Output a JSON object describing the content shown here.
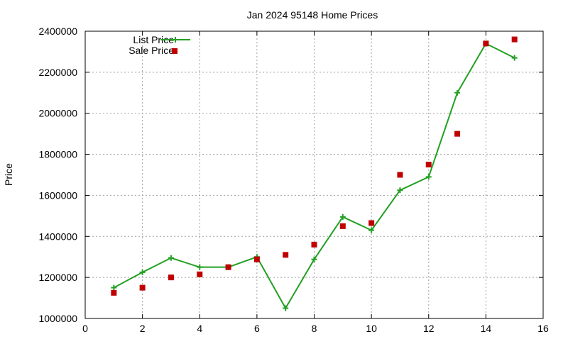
{
  "chart_data": {
    "type": "line",
    "title": "Jan 2024 95148 Home Prices",
    "xlabel": "",
    "ylabel": "Price",
    "xlim": [
      0,
      16
    ],
    "ylim": [
      1000000,
      2400000
    ],
    "x_ticks": [
      "0",
      "2",
      "4",
      "6",
      "8",
      "10",
      "12",
      "14",
      "16"
    ],
    "y_ticks": [
      "1000000",
      "1200000",
      "1400000",
      "1600000",
      "1800000",
      "2000000",
      "2200000",
      "2400000"
    ],
    "grid": true,
    "legend_position": "top-left",
    "series": [
      {
        "name": "List Price",
        "style": "line-with-plus-markers",
        "color": "#22a022",
        "x": [
          1,
          2,
          3,
          4,
          5,
          6,
          7,
          8,
          9,
          10,
          11,
          12,
          13,
          14,
          15
        ],
        "y": [
          1150000,
          1225000,
          1295000,
          1250000,
          1250000,
          1300000,
          1050000,
          1288000,
          1495000,
          1430000,
          1625000,
          1690000,
          2100000,
          2340000,
          2270000
        ]
      },
      {
        "name": "Sale Price",
        "style": "square-markers",
        "color": "#c00000",
        "x": [
          1,
          2,
          3,
          4,
          5,
          6,
          7,
          8,
          9,
          10,
          11,
          12,
          13,
          14,
          15
        ],
        "y": [
          1125000,
          1150000,
          1200000,
          1215000,
          1250000,
          1288000,
          1310000,
          1360000,
          1450000,
          1465000,
          1700000,
          1750000,
          1900000,
          2340000,
          2360000
        ]
      }
    ]
  }
}
